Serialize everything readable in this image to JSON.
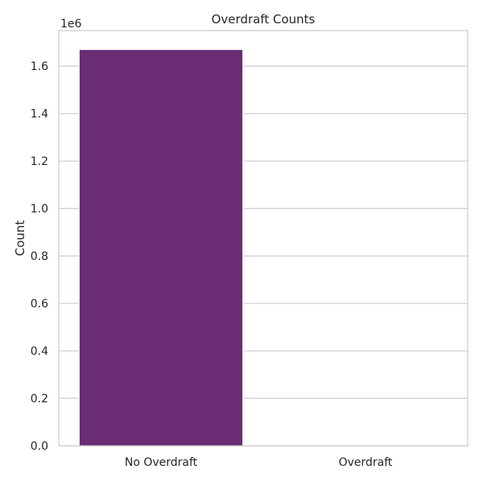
{
  "chart_data": {
    "type": "bar",
    "title": "Overdraft Counts",
    "xlabel": "",
    "ylabel": "Count",
    "offset_label": "1e6",
    "categories": [
      "No Overdraft",
      "Overdraft"
    ],
    "values": [
      1670000,
      0
    ],
    "ylim": [
      0,
      1750000
    ],
    "yticks": [
      0,
      200000,
      400000,
      600000,
      800000,
      1000000,
      1200000,
      1400000,
      1600000
    ],
    "ytick_labels": [
      "0.0",
      "0.2",
      "0.4",
      "0.6",
      "0.8",
      "1.0",
      "1.2",
      "1.4",
      "1.6"
    ],
    "grid": true,
    "colors": {
      "bar": "#6a2c75",
      "grid": "#cccccc",
      "frame": "#cccccc",
      "text": "#262626"
    }
  }
}
